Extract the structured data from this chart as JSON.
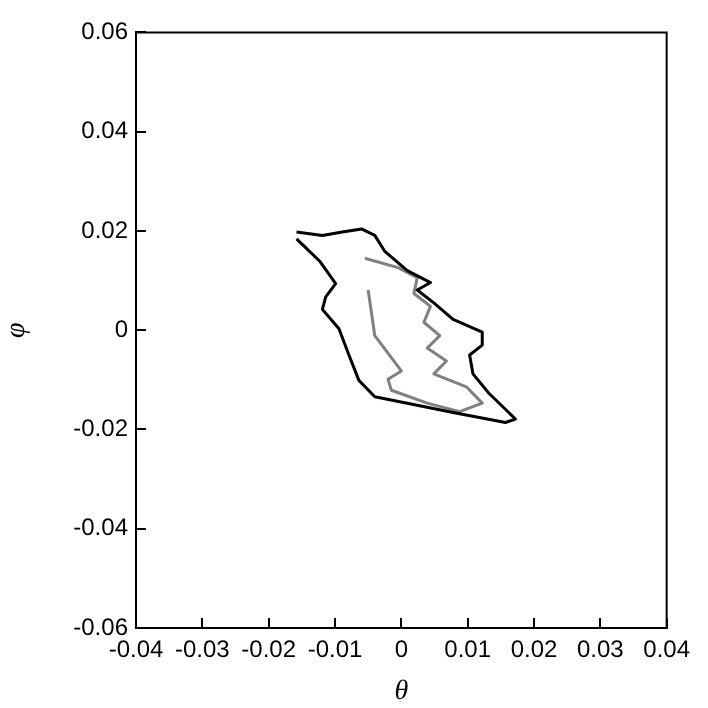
{
  "chart_data": {
    "type": "line",
    "xlabel": "θ",
    "ylabel": "φ",
    "xlim": [
      -0.04,
      0.04
    ],
    "ylim": [
      -0.06,
      0.06
    ],
    "xticks": [
      -0.04,
      -0.03,
      -0.02,
      -0.01,
      0,
      0.01,
      0.02,
      0.03,
      0.04
    ],
    "yticks": [
      -0.06,
      -0.04,
      -0.02,
      0,
      0.02,
      0.04,
      0.06
    ],
    "grid": false,
    "legend": false,
    "marker": "none",
    "line_style": "solid",
    "series": [
      {
        "color": "#000000",
        "x": [
          -0.0158,
          -0.0119,
          -0.0089,
          -0.006,
          -0.004,
          -0.0025,
          0.0009,
          0.0044,
          0.0024,
          0.0049,
          0.0078,
          0.0122,
          0.0122,
          0.0103,
          0.0108,
          0.0132,
          0.0172,
          0.0157,
          0.0078,
          0.0009,
          -0.004,
          -0.0064,
          -0.0079,
          -0.0094,
          -0.0119,
          -0.0114,
          -0.0099,
          -0.0123,
          -0.0158
        ],
        "values": [
          0.0198,
          0.0191,
          0.0198,
          0.0204,
          0.0191,
          0.0159,
          0.012,
          0.0096,
          0.0081,
          0.0055,
          0.0022,
          -0.0004,
          -0.003,
          -0.005,
          -0.0088,
          -0.0127,
          -0.0179,
          -0.0186,
          -0.0166,
          -0.0147,
          -0.0134,
          -0.0101,
          -0.005,
          0.0003,
          0.0042,
          0.0067,
          0.0094,
          0.0139,
          0.0184
        ]
      },
      {
        "color": "#808080",
        "x": [
          -0.0055,
          -0.0005,
          0.0024,
          0.0019,
          0.0044,
          0.0034,
          0.0058,
          0.0039,
          0.0068,
          0.0049,
          0.0098,
          0.0122,
          0.0088,
          0.0039,
          -0.0015,
          -0.002,
          0,
          -0.004,
          -0.005
        ],
        "values": [
          0.0145,
          0.0126,
          0.0106,
          0.0074,
          0.0048,
          0.0016,
          -0.0011,
          -0.0036,
          -0.0062,
          -0.0088,
          -0.0114,
          -0.0147,
          -0.0164,
          -0.0147,
          -0.0121,
          -0.0099,
          -0.0082,
          -0.0011,
          0.0081
        ]
      }
    ]
  }
}
